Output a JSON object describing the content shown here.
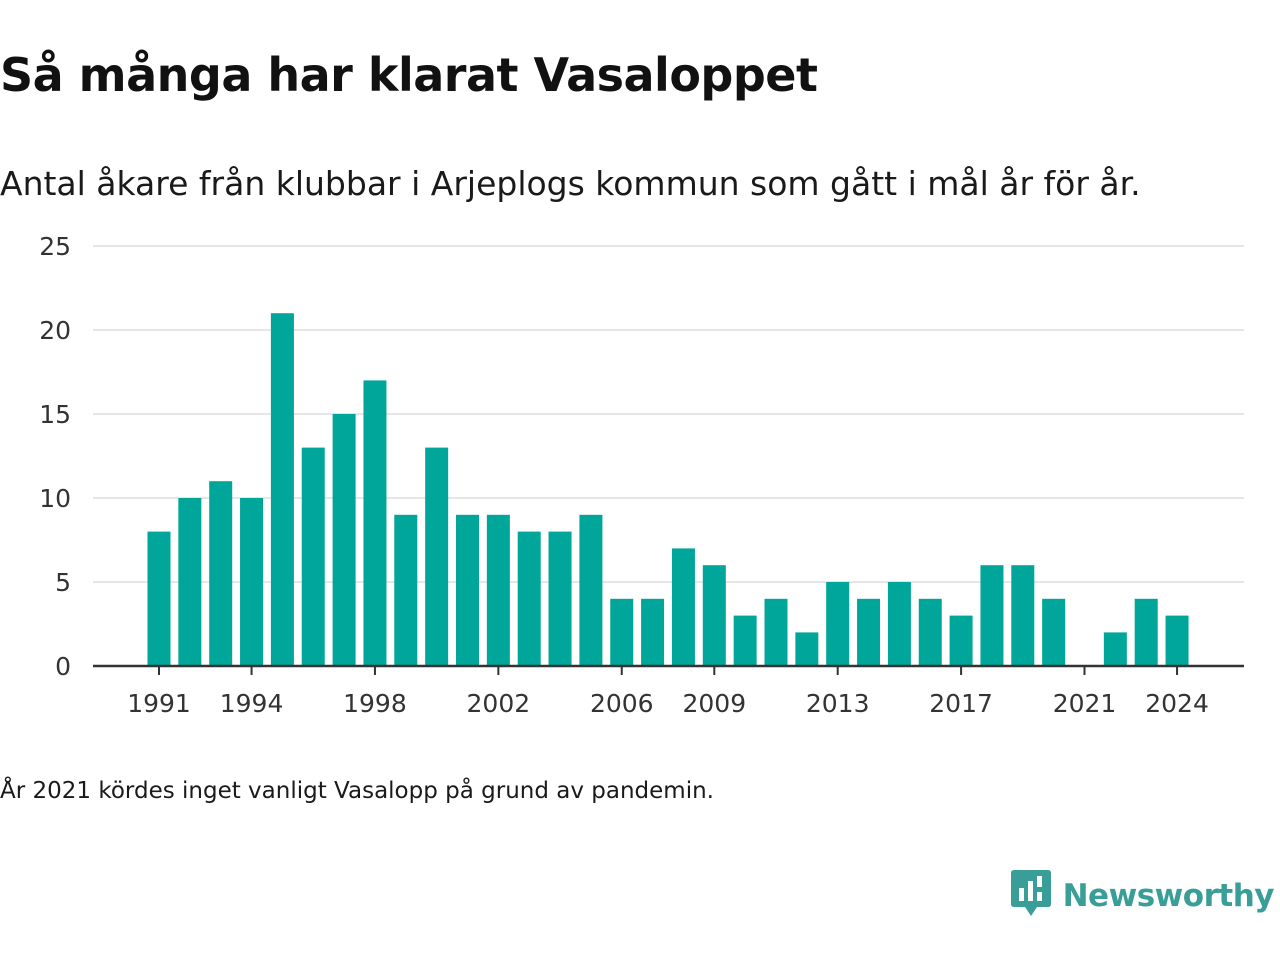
{
  "header": {
    "title": "Så många har klarat Vasaloppet",
    "subtitle": "Antal åkare från klubbar i Arjeplogs kommun som gått i mål år för år."
  },
  "footer": {
    "note": "År 2021 kördes inget vanligt Vasalopp på grund av pandemin.",
    "brand": "Newsworthy"
  },
  "colors": {
    "bar": "#00a69a",
    "grid": "#dddddd",
    "axis": "#333333",
    "brand": "#3a9e98"
  },
  "chart_data": {
    "type": "bar",
    "title": "Så många har klarat Vasaloppet",
    "subtitle": "Antal åkare från klubbar i Arjeplogs kommun som gått i mål år för år.",
    "xlabel": "",
    "ylabel": "",
    "ylim": [
      0,
      25
    ],
    "yticks": [
      0,
      5,
      10,
      15,
      20,
      25
    ],
    "xtick_labels": [
      "1991",
      "1994",
      "1998",
      "2002",
      "2006",
      "2009",
      "2013",
      "2017",
      "2021",
      "2024"
    ],
    "grid": true,
    "categories": [
      1991,
      1992,
      1993,
      1994,
      1995,
      1996,
      1997,
      1998,
      1999,
      2000,
      2001,
      2002,
      2003,
      2004,
      2005,
      2006,
      2007,
      2008,
      2009,
      2010,
      2011,
      2012,
      2013,
      2014,
      2015,
      2016,
      2017,
      2018,
      2019,
      2020,
      2021,
      2022,
      2023,
      2024
    ],
    "values": [
      8,
      10,
      11,
      10,
      21,
      13,
      15,
      17,
      9,
      13,
      9,
      9,
      8,
      8,
      9,
      4,
      4,
      7,
      6,
      3,
      4,
      2,
      5,
      4,
      5,
      4,
      3,
      6,
      6,
      4,
      0,
      2,
      4,
      3
    ]
  }
}
